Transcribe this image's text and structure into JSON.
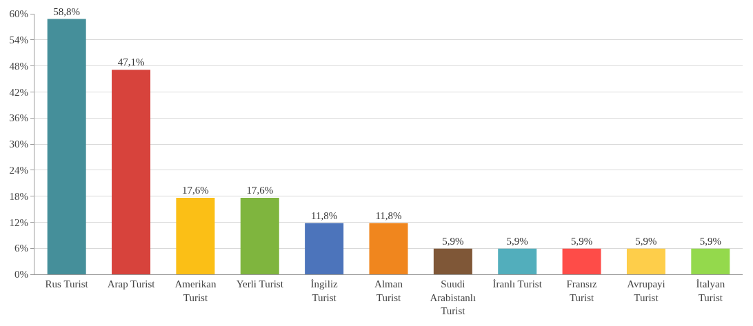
{
  "chart_data": {
    "type": "bar",
    "categories": [
      "Rus Turist",
      "Arap Turist",
      "Amerikan\nTurist",
      "Yerli Turist",
      "İngiliz\nTurist",
      "Alman\nTurist",
      "Suudi\nArabistanlı\nTurist",
      "İranlı Turist",
      "Fransız\nTurist",
      "Avrupayi\nTurist",
      "İtalyan\nTurist"
    ],
    "values": [
      58.8,
      47.1,
      17.6,
      17.6,
      11.8,
      11.8,
      5.9,
      5.9,
      5.9,
      5.9,
      5.9
    ],
    "value_labels": [
      "58,8%",
      "47,1%",
      "17,6%",
      "17,6%",
      "11,8%",
      "11,8%",
      "5,9%",
      "5,9%",
      "5,9%",
      "5,9%",
      "5,9%"
    ],
    "colors": [
      "#458f9a",
      "#d7433c",
      "#fbbf16",
      "#7fb53e",
      "#4c74bb",
      "#f0861e",
      "#7f5737",
      "#52aebc",
      "#fe4c48",
      "#fece4a",
      "#94d94c"
    ],
    "ylim": [
      0,
      60
    ],
    "yticks": [
      {
        "value": 0,
        "label": "0%"
      },
      {
        "value": 6,
        "label": "6%"
      },
      {
        "value": 12,
        "label": "12%"
      },
      {
        "value": 18,
        "label": "18%"
      },
      {
        "value": 24,
        "label": "24%"
      },
      {
        "value": 30,
        "label": "30%"
      },
      {
        "value": 36,
        "label": "36%"
      },
      {
        "value": 42,
        "label": "42%"
      },
      {
        "value": 48,
        "label": "48%"
      },
      {
        "value": 54,
        "label": "54%"
      },
      {
        "value": 60,
        "label": "60%"
      }
    ],
    "grid": "y"
  }
}
